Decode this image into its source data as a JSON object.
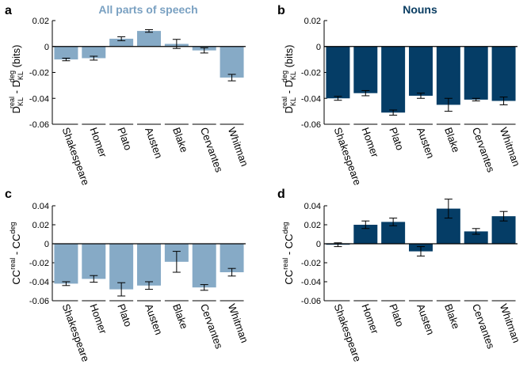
{
  "panel_letters": [
    "a",
    "b",
    "c",
    "d"
  ],
  "panel_titles": [
    "All parts of speech",
    "Nouns",
    "",
    ""
  ],
  "ylabel_top": {
    "main": "D",
    "sub1": "KL",
    "sup1": "real",
    "mid": " - D",
    "sub2": "KL",
    "sup2": "deg",
    "unit": " (bits)"
  },
  "ylabel_bottom": {
    "main": "CC",
    "sup1": "real",
    "mid": " - CC",
    "sup2": "deg"
  },
  "colors": {
    "light": "#86aac6",
    "dark": "#053d66",
    "title_light": "#7aa1c2",
    "title_dark": "#0a3d62"
  },
  "chart_data": [
    {
      "type": "bar",
      "panel": "a",
      "title": "All parts of speech",
      "categories": [
        "Shakespeare",
        "Homer",
        "Plato",
        "Austen",
        "Blake",
        "Cervantes",
        "Whitman"
      ],
      "values": [
        -0.01,
        -0.009,
        0.006,
        0.012,
        0.002,
        -0.003,
        -0.024
      ],
      "errors": [
        0.001,
        0.0015,
        0.0015,
        0.001,
        0.0035,
        0.002,
        0.0025
      ],
      "ylim": [
        -0.06,
        0.02
      ],
      "yticks": [
        -0.06,
        -0.04,
        -0.02,
        0,
        0.02
      ],
      "yticklabels": [
        "-0.06",
        "-0.04",
        "-0.02",
        "0",
        "0.02"
      ],
      "color": "#86aac6"
    },
    {
      "type": "bar",
      "panel": "b",
      "title": "Nouns",
      "categories": [
        "Shakespeare",
        "Homer",
        "Plato",
        "Austen",
        "Blake",
        "Cervantes",
        "Whitman"
      ],
      "values": [
        -0.04,
        -0.036,
        -0.051,
        -0.038,
        -0.045,
        -0.041,
        -0.042
      ],
      "errors": [
        0.0015,
        0.002,
        0.002,
        0.002,
        0.005,
        0.001,
        0.003
      ],
      "ylim": [
        -0.06,
        0.02
      ],
      "yticks": [
        -0.06,
        -0.04,
        -0.02,
        0,
        0.02
      ],
      "yticklabels": [
        "-0.06",
        "-0.04",
        "-0.02",
        "0",
        "0.02"
      ],
      "color": "#053d66"
    },
    {
      "type": "bar",
      "panel": "c",
      "title": "",
      "categories": [
        "Shakespeare",
        "Homer",
        "Plato",
        "Austen",
        "Blake",
        "Cervantes",
        "Whitman"
      ],
      "values": [
        -0.042,
        -0.037,
        -0.048,
        -0.044,
        -0.019,
        -0.046,
        -0.03
      ],
      "errors": [
        0.002,
        0.0035,
        0.007,
        0.004,
        0.011,
        0.003,
        0.004
      ],
      "ylim": [
        -0.06,
        0.04
      ],
      "yticks": [
        -0.06,
        -0.04,
        -0.02,
        0,
        0.02,
        0.04
      ],
      "yticklabels": [
        "-0.06",
        "-0.04",
        "-0.02",
        "0",
        "0.02",
        "0.04"
      ],
      "color": "#86aac6"
    },
    {
      "type": "bar",
      "panel": "d",
      "title": "",
      "categories": [
        "Shakespeare",
        "Homer",
        "Plato",
        "Austen",
        "Blake",
        "Cervantes",
        "Whitman"
      ],
      "values": [
        -0.001,
        0.02,
        0.023,
        -0.008,
        0.037,
        0.013,
        0.029
      ],
      "errors": [
        0.002,
        0.004,
        0.004,
        0.005,
        0.01,
        0.003,
        0.005
      ],
      "ylim": [
        -0.06,
        0.04
      ],
      "yticks": [
        -0.06,
        -0.04,
        -0.02,
        0,
        0.02,
        0.04
      ],
      "yticklabels": [
        "-0.06",
        "-0.04",
        "-0.02",
        "0",
        "0.02",
        "0.04"
      ],
      "color": "#053d66"
    }
  ]
}
